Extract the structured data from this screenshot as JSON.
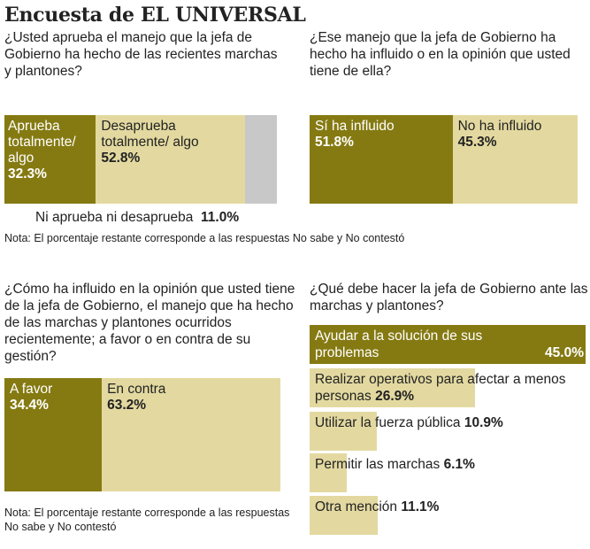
{
  "title": "Encuesta de EL UNIVERSAL",
  "colors": {
    "dark": "#857a12",
    "light": "#e3d9a0",
    "gray": "#c8c8c8"
  },
  "chart_data": [
    {
      "type": "bar",
      "stacked": true,
      "question": "¿Usted aprueba el manejo que la jefa de Gobierno ha hecho de las recientes marchas y plantones?",
      "segments": [
        {
          "label": "Aprueba totalmente/ algo",
          "value": 32.3,
          "value_label": "32.3%"
        },
        {
          "label": "Desaprueba totalmente/ algo",
          "value": 52.8,
          "value_label": "52.8%"
        },
        {
          "label": "Ni aprueba ni desaprueba",
          "value": 11.0,
          "value_label": "11.0%"
        }
      ],
      "note": "Nota: El porcentaje restante corresponde a las respuestas No sabe y No contestó"
    },
    {
      "type": "bar",
      "stacked": true,
      "question": "¿Ese manejo que la jefa de Gobierno ha hecho ha influido o en la opinión que usted tiene de ella?",
      "segments": [
        {
          "label": "Sí ha influido",
          "value": 51.8,
          "value_label": "51.8%"
        },
        {
          "label": "No ha influido",
          "value": 45.3,
          "value_label": "45.3%"
        }
      ]
    },
    {
      "type": "bar",
      "stacked": true,
      "question": "¿Cómo ha influido en la opinión que usted tiene de la jefa de Gobierno, el manejo que ha hecho de las marchas y plantones ocurridos recientemente; a favor o en contra de su gestión?",
      "segments": [
        {
          "label": "A favor",
          "value": 34.4,
          "value_label": "34.4%"
        },
        {
          "label": "En contra",
          "value": 63.2,
          "value_label": "63.2%"
        }
      ],
      "note": "Nota: El porcentaje restante corresponde a las respuestas No sabe y No contestó"
    },
    {
      "type": "bar",
      "orientation": "horizontal",
      "question": "¿Qué debe hacer la jefa de Gobierno ante las marchas y plantones?",
      "bars": [
        {
          "label": "Ayudar a la solución de sus problemas",
          "value": 45.0,
          "value_label": "45.0%"
        },
        {
          "label": "Realizar operativos para afectar a menos personas",
          "value": 26.9,
          "value_label": "26.9%"
        },
        {
          "label": "Utilizar la fuerza pública",
          "value": 10.9,
          "value_label": "10.9%"
        },
        {
          "label": "Permitir las marchas",
          "value": 6.1,
          "value_label": "6.1%"
        },
        {
          "label": "Otra mención",
          "value": 11.1,
          "value_label": "11.1%"
        }
      ]
    }
  ]
}
